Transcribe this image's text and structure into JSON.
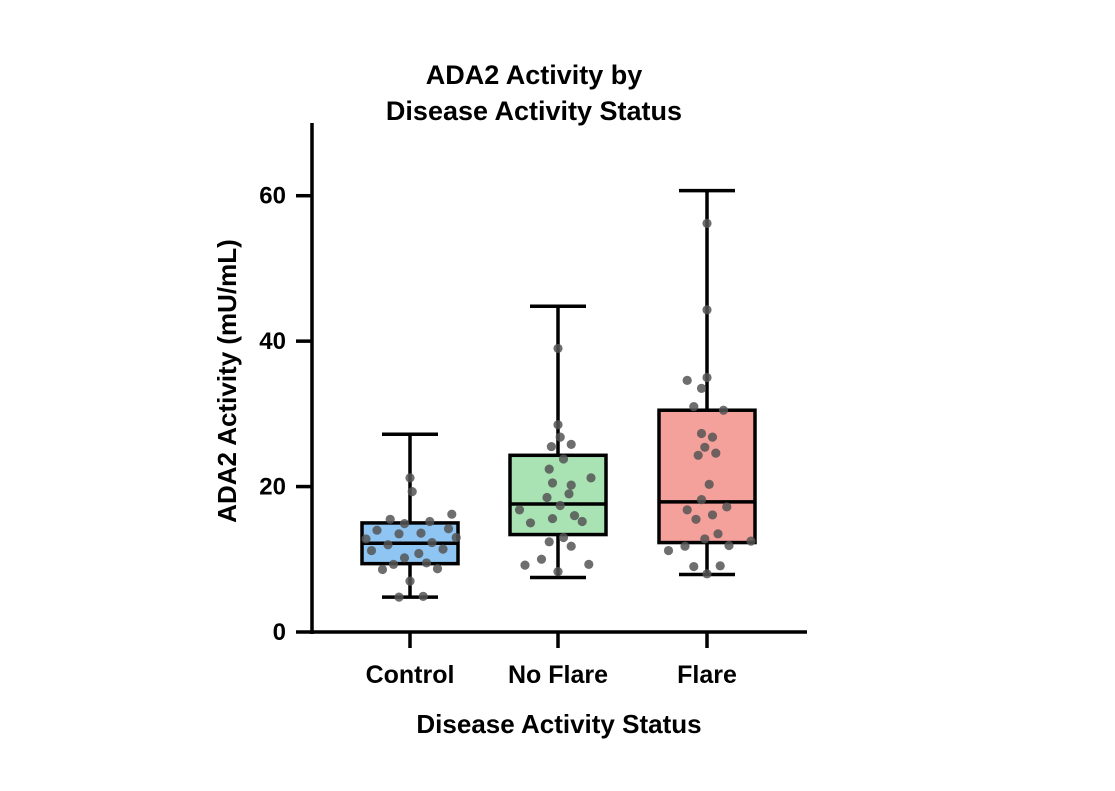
{
  "chart_data": {
    "type": "box",
    "title": [
      "ADA2 Activity by",
      "Disease Activity Status"
    ],
    "xlabel": "Disease Activity Status",
    "ylabel": "ADA2 Activity (mU/mL)",
    "ylim": [
      0,
      70
    ],
    "yticks": [
      0,
      20,
      40,
      60
    ],
    "ytick_labels": [
      "0",
      "20",
      "40",
      "60"
    ],
    "grid": false,
    "legend": "none",
    "categories": [
      "Control",
      "No Flare",
      "Flare"
    ],
    "colors": [
      "#8ec5f2",
      "#a9e3b4",
      "#f4a09b"
    ],
    "point_color": "#555555",
    "boxes": [
      {
        "min": 4.8,
        "q1": 9.4,
        "median": 12.2,
        "q3": 15.0,
        "max": 27.2
      },
      {
        "min": 7.5,
        "q1": 13.4,
        "median": 17.6,
        "q3": 24.3,
        "max": 44.8
      },
      {
        "min": 7.9,
        "q1": 12.3,
        "median": 17.9,
        "q3": 30.5,
        "max": 60.7
      }
    ],
    "points": [
      [
        {
          "dx": -0.1,
          "y": 4.8
        },
        {
          "dx": 0.12,
          "y": 4.9
        },
        {
          "dx": 0.0,
          "y": 7.0
        },
        {
          "dx": -0.25,
          "y": 8.6
        },
        {
          "dx": 0.25,
          "y": 8.7
        },
        {
          "dx": -0.15,
          "y": 9.3
        },
        {
          "dx": 0.15,
          "y": 9.5
        },
        {
          "dx": -0.05,
          "y": 10.2
        },
        {
          "dx": 0.08,
          "y": 10.8
        },
        {
          "dx": -0.35,
          "y": 11.2
        },
        {
          "dx": 0.3,
          "y": 11.4
        },
        {
          "dx": -0.2,
          "y": 12.0
        },
        {
          "dx": 0.2,
          "y": 12.3
        },
        {
          "dx": -0.4,
          "y": 12.8
        },
        {
          "dx": 0.42,
          "y": 13.0
        },
        {
          "dx": -0.1,
          "y": 13.5
        },
        {
          "dx": 0.1,
          "y": 13.6
        },
        {
          "dx": -0.3,
          "y": 14.0
        },
        {
          "dx": 0.35,
          "y": 14.2
        },
        {
          "dx": -0.05,
          "y": 14.9
        },
        {
          "dx": 0.18,
          "y": 15.2
        },
        {
          "dx": -0.18,
          "y": 15.5
        },
        {
          "dx": 0.38,
          "y": 16.2
        },
        {
          "dx": 0.02,
          "y": 19.3
        },
        {
          "dx": 0.0,
          "y": 21.2
        }
      ],
      [
        {
          "dx": 0.0,
          "y": 8.3
        },
        {
          "dx": -0.3,
          "y": 9.2
        },
        {
          "dx": 0.28,
          "y": 9.3
        },
        {
          "dx": -0.15,
          "y": 10.0
        },
        {
          "dx": 0.12,
          "y": 11.8
        },
        {
          "dx": -0.08,
          "y": 12.4
        },
        {
          "dx": 0.05,
          "y": 13.0
        },
        {
          "dx": -0.25,
          "y": 15.0
        },
        {
          "dx": 0.22,
          "y": 15.2
        },
        {
          "dx": -0.05,
          "y": 15.6
        },
        {
          "dx": 0.15,
          "y": 16.0
        },
        {
          "dx": -0.35,
          "y": 16.8
        },
        {
          "dx": 0.02,
          "y": 17.4
        },
        {
          "dx": -0.1,
          "y": 18.5
        },
        {
          "dx": 0.1,
          "y": 19.0
        },
        {
          "dx": -0.05,
          "y": 20.5
        },
        {
          "dx": 0.12,
          "y": 20.2
        },
        {
          "dx": 0.3,
          "y": 21.2
        },
        {
          "dx": -0.08,
          "y": 22.4
        },
        {
          "dx": 0.05,
          "y": 23.8
        },
        {
          "dx": -0.06,
          "y": 25.5
        },
        {
          "dx": 0.12,
          "y": 25.8
        },
        {
          "dx": 0.02,
          "y": 26.8
        },
        {
          "dx": 0.0,
          "y": 28.5
        },
        {
          "dx": 0.0,
          "y": 39.0
        }
      ],
      [
        {
          "dx": 0.0,
          "y": 8.0
        },
        {
          "dx": -0.12,
          "y": 9.0
        },
        {
          "dx": 0.12,
          "y": 9.1
        },
        {
          "dx": -0.35,
          "y": 11.2
        },
        {
          "dx": -0.2,
          "y": 11.8
        },
        {
          "dx": 0.2,
          "y": 11.9
        },
        {
          "dx": 0.4,
          "y": 12.5
        },
        {
          "dx": -0.02,
          "y": 12.8
        },
        {
          "dx": 0.1,
          "y": 13.5
        },
        {
          "dx": -0.1,
          "y": 15.5
        },
        {
          "dx": 0.05,
          "y": 16.1
        },
        {
          "dx": -0.18,
          "y": 16.8
        },
        {
          "dx": 0.18,
          "y": 17.2
        },
        {
          "dx": -0.05,
          "y": 18.2
        },
        {
          "dx": 0.02,
          "y": 20.3
        },
        {
          "dx": -0.08,
          "y": 24.3
        },
        {
          "dx": 0.08,
          "y": 24.6
        },
        {
          "dx": -0.02,
          "y": 25.4
        },
        {
          "dx": 0.05,
          "y": 26.8
        },
        {
          "dx": -0.05,
          "y": 27.3
        },
        {
          "dx": 0.15,
          "y": 30.5
        },
        {
          "dx": -0.12,
          "y": 31.0
        },
        {
          "dx": -0.05,
          "y": 33.5
        },
        {
          "dx": 0.0,
          "y": 35.0
        },
        {
          "dx": -0.18,
          "y": 34.6
        },
        {
          "dx": 0.0,
          "y": 44.3
        },
        {
          "dx": 0.0,
          "y": 56.2
        }
      ]
    ]
  }
}
